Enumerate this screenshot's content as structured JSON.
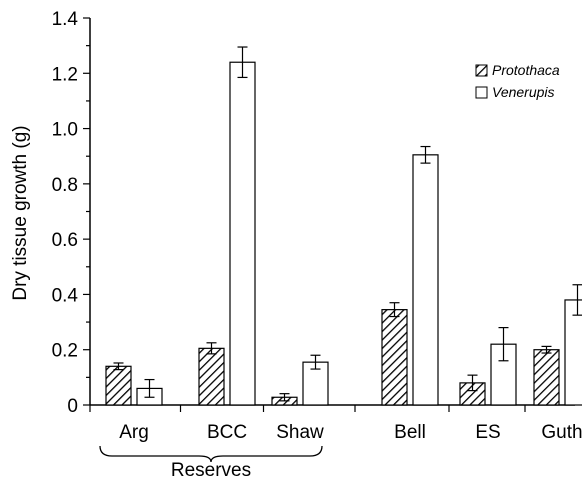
{
  "chart_data": {
    "type": "bar",
    "categories": [
      "Arg",
      "BCC",
      "Shaw",
      "Bell",
      "ES",
      "Guth"
    ],
    "series": [
      {
        "name": "Protothaca",
        "values": [
          0.14,
          0.205,
          0.028,
          0.345,
          0.08,
          0.2
        ],
        "errors": [
          0.012,
          0.02,
          0.013,
          0.025,
          0.028,
          0.012
        ],
        "pattern": "hatched"
      },
      {
        "name": "Venerupis",
        "values": [
          0.06,
          1.24,
          0.155,
          0.905,
          0.22,
          0.38
        ],
        "errors": [
          0.032,
          0.055,
          0.025,
          0.03,
          0.06,
          0.055
        ],
        "pattern": "open"
      }
    ],
    "ylabel": "Dry tissue growth (g)",
    "xlabel": "",
    "ylim": [
      0,
      1.4
    ],
    "yticks": [
      "0",
      "0.2",
      "0.4",
      "0.6",
      "0.8",
      "1.0",
      "1.2",
      "1.4"
    ],
    "grid": false,
    "legend_position": "top-right",
    "group_annotation": {
      "label": "Reserves",
      "categories": [
        "Arg",
        "BCC",
        "Shaw"
      ]
    },
    "colors": {
      "bar_stroke": "#000000",
      "hatch": "#000000",
      "open_fill": "#ffffff"
    }
  }
}
